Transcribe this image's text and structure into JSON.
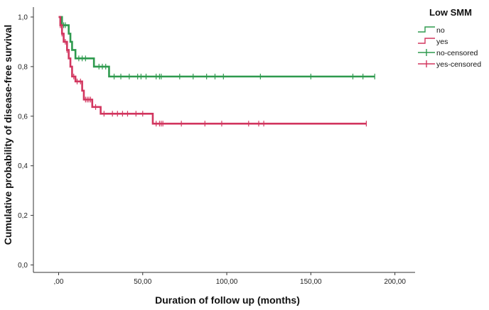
{
  "chart_data": {
    "type": "line",
    "subtype": "kaplan-meier",
    "xlabel": "Duration of follow up (months)",
    "ylabel": "Cumulative probability of disease-free survival",
    "xlim": [
      -15,
      212
    ],
    "ylim": [
      -0.03,
      1.04
    ],
    "x_ticks": [
      0,
      50,
      100,
      150,
      200
    ],
    "x_tick_labels": [
      ",00",
      "50,00",
      "100,00",
      "150,00",
      "200,00"
    ],
    "y_ticks": [
      0,
      0.2,
      0.4,
      0.6,
      0.8,
      1.0
    ],
    "y_tick_labels": [
      "0,0",
      "0,2",
      "0,4",
      "0,6",
      "0,8",
      "1,0"
    ],
    "legend": {
      "title": "Low SMM",
      "position": "top-right",
      "entries": [
        "no",
        "yes",
        "no-censored",
        "yes-censored"
      ]
    },
    "series": [
      {
        "name": "no",
        "color": "#2e9a4e",
        "steps": [
          [
            0,
            1.0
          ],
          [
            2,
            0.967
          ],
          [
            6,
            0.933
          ],
          [
            7,
            0.9
          ],
          [
            8,
            0.867
          ],
          [
            10,
            0.833
          ],
          [
            21,
            0.8
          ],
          [
            30,
            0.76
          ],
          [
            188,
            0.76
          ]
        ],
        "censored_x": [
          3,
          4,
          12,
          14,
          16,
          24,
          26,
          28,
          33,
          37,
          42,
          47,
          49,
          52,
          58,
          60,
          61,
          72,
          80,
          88,
          93,
          98,
          120,
          150,
          175,
          181,
          188
        ]
      },
      {
        "name": "yes",
        "color": "#d2365f",
        "steps": [
          [
            0,
            1.0
          ],
          [
            1,
            0.967
          ],
          [
            2,
            0.933
          ],
          [
            3,
            0.9
          ],
          [
            5,
            0.867
          ],
          [
            6,
            0.833
          ],
          [
            7,
            0.8
          ],
          [
            8,
            0.76
          ],
          [
            10,
            0.74
          ],
          [
            14,
            0.703
          ],
          [
            15,
            0.667
          ],
          [
            20,
            0.637
          ],
          [
            25,
            0.61
          ],
          [
            56,
            0.57
          ],
          [
            183,
            0.57
          ]
        ],
        "censored_x": [
          1,
          2,
          4,
          5,
          9,
          11,
          13,
          16,
          17,
          18,
          19,
          22,
          27,
          32,
          35,
          38,
          41,
          46,
          50,
          58,
          60,
          61,
          62,
          73,
          87,
          97,
          113,
          119,
          122,
          183
        ]
      }
    ]
  }
}
